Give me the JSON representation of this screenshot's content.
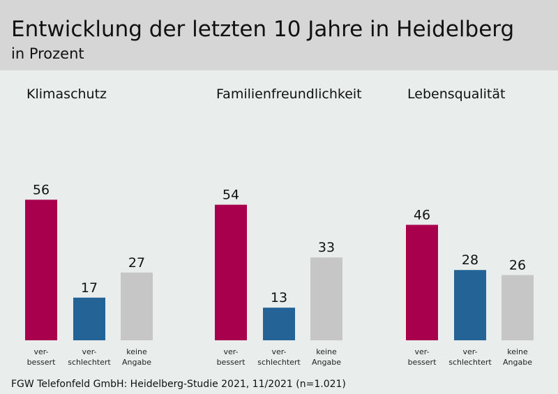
{
  "header": {
    "title": "Entwicklung der letzten 10 Jahre in Heidelberg",
    "subtitle": "in Prozent"
  },
  "footer": {
    "source": "FGW Telefonfeld GmbH: Heidelberg-Studie 2021, 11/2021 (n=1.021)"
  },
  "colors": {
    "verbessert": "#a8004c",
    "verschlechtert": "#236396",
    "keine_angabe": "#c6c6c6",
    "header_bg": "#d6d6d6",
    "background": "#e9edec"
  },
  "chart_data": {
    "type": "bar",
    "ylim": [
      0,
      60
    ],
    "categories": [
      [
        "ver-",
        "bessert"
      ],
      [
        "ver-",
        "schlechtert"
      ],
      [
        "keine",
        "Angabe"
      ]
    ],
    "panels": [
      {
        "title": "Klimaschutz",
        "values": [
          56,
          17,
          27
        ]
      },
      {
        "title": "Familienfreundlichkeit",
        "values": [
          54,
          13,
          33
        ]
      },
      {
        "title": "Lebensqualität",
        "values": [
          46,
          28,
          26
        ]
      }
    ]
  }
}
